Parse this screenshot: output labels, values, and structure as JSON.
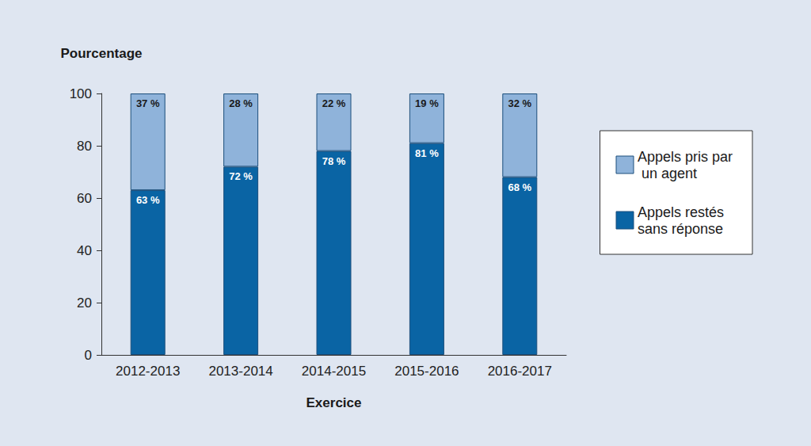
{
  "chart_data": {
    "type": "bar",
    "stacked": true,
    "data_labels": true,
    "grid": false,
    "legend": "right",
    "x_label": "Exercice",
    "y_label": "Pourcentage",
    "categories": [
      "2012-2013",
      "2013-2014",
      "2014-2015",
      "2015-2016",
      "2016-2017"
    ],
    "series": [
      {
        "name": "Appels restés sans réponse",
        "color": "#0a64a4",
        "values": [
          63,
          72,
          78,
          81,
          68
        ],
        "value_labels": [
          "63 %",
          "72 %",
          "78 %",
          "81 %",
          "68 %"
        ]
      },
      {
        "name": "Appels pris par un agent",
        "color": "#8fb3da",
        "values": [
          37,
          28,
          22,
          19,
          32
        ],
        "value_labels": [
          "37 %",
          "28 %",
          "22 %",
          "19 %",
          "32 %"
        ]
      }
    ],
    "ylim": [
      0,
      100
    ],
    "yticks": [
      0,
      20,
      40,
      60,
      80,
      100
    ]
  }
}
